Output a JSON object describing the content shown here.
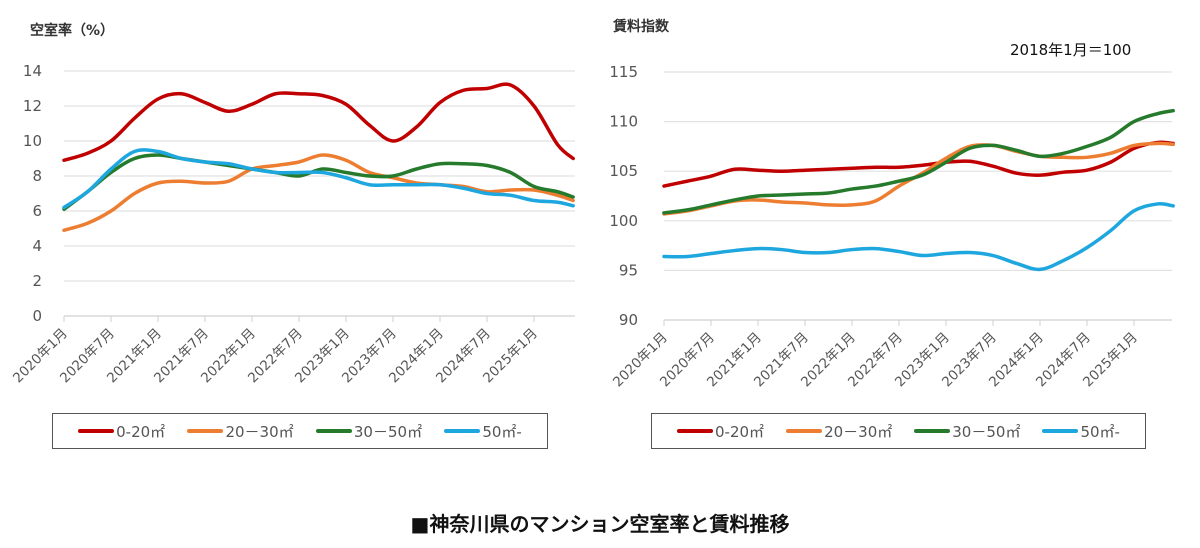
{
  "title": "■神奈川県のマンション空室率と賃料推移",
  "colors": {
    "0-20": "#c00000",
    "20-30": "#ed7d31",
    "30-50": "#257a2c",
    "50+": "#1ea6df"
  },
  "chart_data": [
    {
      "type": "line",
      "title": "空室率（%）",
      "ylabel": "空室率（%）",
      "ylim": [
        0,
        14
      ],
      "yticks": [
        "0",
        "2",
        "4",
        "6",
        "8",
        "10",
        "12",
        "14"
      ],
      "xticks": [
        "2020年1月",
        "2020年7月",
        "2021年1月",
        "2021年7月",
        "2022年1月",
        "2022年7月",
        "2023年1月",
        "2023年7月",
        "2024年1月",
        "2024年7月",
        "2025年1月"
      ],
      "x_months_since_2020_01": [
        0,
        3,
        6,
        9,
        12,
        15,
        18,
        21,
        24,
        27,
        30,
        33,
        36,
        39,
        42,
        45,
        48,
        51,
        54,
        57,
        60,
        63,
        65
      ],
      "grid": true,
      "legend_position": "bottom",
      "series": [
        {
          "name": "0-20㎡",
          "key": "0-20",
          "values": [
            8.9,
            9.3,
            10.0,
            11.3,
            12.4,
            12.7,
            12.2,
            11.7,
            12.1,
            12.7,
            12.7,
            12.6,
            12.1,
            10.9,
            10.0,
            10.8,
            12.2,
            12.9,
            13.0,
            13.2,
            12.0,
            9.8,
            9.0
          ]
        },
        {
          "name": "20－30㎡",
          "key": "20-30",
          "values": [
            4.9,
            5.3,
            6.0,
            7.0,
            7.6,
            7.7,
            7.6,
            7.7,
            8.4,
            8.6,
            8.8,
            9.2,
            8.9,
            8.2,
            7.9,
            7.6,
            7.5,
            7.4,
            7.1,
            7.2,
            7.2,
            6.9,
            6.6
          ]
        },
        {
          "name": "30－50㎡",
          "key": "30-50",
          "values": [
            6.1,
            7.1,
            8.2,
            9.0,
            9.2,
            9.0,
            8.8,
            8.6,
            8.4,
            8.2,
            8.0,
            8.4,
            8.2,
            8.0,
            8.0,
            8.4,
            8.7,
            8.7,
            8.6,
            8.2,
            7.4,
            7.1,
            6.8
          ]
        },
        {
          "name": "50㎡-",
          "key": "50+",
          "values": [
            6.2,
            7.1,
            8.4,
            9.4,
            9.4,
            9.0,
            8.8,
            8.7,
            8.4,
            8.2,
            8.2,
            8.2,
            7.9,
            7.5,
            7.5,
            7.5,
            7.5,
            7.3,
            7.0,
            6.9,
            6.6,
            6.5,
            6.3
          ]
        }
      ]
    },
    {
      "type": "line",
      "title": "賃料指数",
      "ylabel": "賃料指数",
      "annotation": "2018年1月＝100",
      "ylim": [
        90,
        115
      ],
      "yticks": [
        "90",
        "95",
        "100",
        "105",
        "110",
        "115"
      ],
      "xticks": [
        "2020年1月",
        "2020年7月",
        "2021年1月",
        "2021年7月",
        "2022年1月",
        "2022年7月",
        "2023年1月",
        "2023年7月",
        "2024年1月",
        "2024年7月",
        "2025年1月"
      ],
      "x_months_since_2020_01": [
        0,
        3,
        6,
        9,
        12,
        15,
        18,
        21,
        24,
        27,
        30,
        33,
        36,
        39,
        42,
        45,
        48,
        51,
        54,
        57,
        60,
        63,
        65
      ],
      "grid": true,
      "legend_position": "bottom",
      "series": [
        {
          "name": "0-20㎡",
          "key": "0-20",
          "values": [
            103.5,
            104.0,
            104.5,
            105.2,
            105.1,
            105.0,
            105.1,
            105.2,
            105.3,
            105.4,
            105.4,
            105.6,
            105.9,
            106.0,
            105.5,
            104.8,
            104.6,
            104.9,
            105.1,
            105.9,
            107.3,
            107.9,
            107.8
          ]
        },
        {
          "name": "20－30㎡",
          "key": "20-30",
          "values": [
            100.7,
            101.0,
            101.5,
            102.0,
            102.1,
            101.9,
            101.8,
            101.6,
            101.6,
            102.0,
            103.5,
            104.8,
            106.3,
            107.5,
            107.6,
            107.0,
            106.5,
            106.4,
            106.4,
            106.8,
            107.6,
            107.8,
            107.7
          ]
        },
        {
          "name": "30－50㎡",
          "key": "30-50",
          "values": [
            100.8,
            101.1,
            101.6,
            102.1,
            102.5,
            102.6,
            102.7,
            102.8,
            103.2,
            103.5,
            104.0,
            104.6,
            105.9,
            107.3,
            107.6,
            107.1,
            106.5,
            106.8,
            107.5,
            108.4,
            110.0,
            110.8,
            111.1
          ]
        },
        {
          "name": "50㎡-",
          "key": "50+",
          "values": [
            96.4,
            96.4,
            96.7,
            97.0,
            97.2,
            97.1,
            96.8,
            96.8,
            97.1,
            97.2,
            96.9,
            96.5,
            96.7,
            96.8,
            96.5,
            95.7,
            95.1,
            96.0,
            97.3,
            99.0,
            101.0,
            101.7,
            101.5
          ]
        }
      ]
    }
  ]
}
